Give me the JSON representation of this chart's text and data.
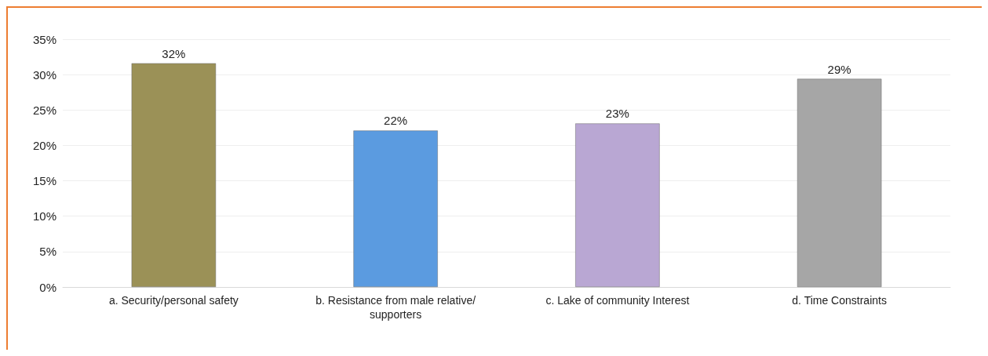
{
  "chart_data": {
    "type": "bar",
    "categories": [
      "a. Security/personal safety",
      "b. Resistance from male relative/supporters",
      "c. Lake of community Interest",
      "d. Time Constraints"
    ],
    "values": [
      31.6,
      22.1,
      23.1,
      29.4
    ],
    "colors": [
      "#9b9157",
      "#5b9be0",
      "#b9a7d3",
      "#a6a6a6"
    ],
    "value_labels": [
      "32%",
      "22%",
      "23%",
      "29%"
    ],
    "ylim": [
      0,
      35
    ],
    "yticks": [
      {
        "value": 0,
        "label": "0%"
      },
      {
        "value": 5,
        "label": "5%"
      },
      {
        "value": 10,
        "label": "10%"
      },
      {
        "value": 15,
        "label": "15%"
      },
      {
        "value": 20,
        "label": "20%"
      },
      {
        "value": 25,
        "label": "25%"
      },
      {
        "value": 30,
        "label": "30%"
      },
      {
        "value": 35,
        "label": "35%"
      }
    ],
    "grid": "y"
  }
}
